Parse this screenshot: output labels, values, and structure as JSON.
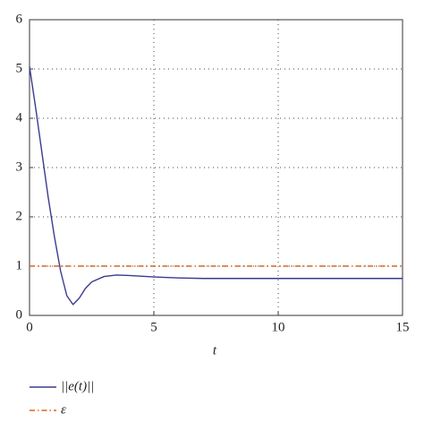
{
  "chart_data": {
    "type": "line",
    "x_label": "t",
    "xlim": [
      0,
      15
    ],
    "xticks": [
      0,
      5,
      10,
      15
    ],
    "ylim": [
      0,
      6
    ],
    "yticks": [
      0,
      1,
      2,
      3,
      4,
      5,
      6
    ],
    "grid": true,
    "series": [
      {
        "name": "||e(t)||",
        "color": "#3b3b8f",
        "style": "solid",
        "x": [
          0,
          0.25,
          0.5,
          0.75,
          1,
          1.25,
          1.5,
          1.75,
          2,
          2.25,
          2.5,
          3,
          3.5,
          4,
          5,
          6,
          7,
          8,
          10,
          12,
          15
        ],
        "values": [
          5.05,
          4.2,
          3.3,
          2.4,
          1.6,
          0.9,
          0.4,
          0.22,
          0.35,
          0.55,
          0.68,
          0.79,
          0.82,
          0.81,
          0.78,
          0.76,
          0.75,
          0.75,
          0.75,
          0.75,
          0.75
        ]
      },
      {
        "name": "ε",
        "color": "#d9661f",
        "style": "dashdot",
        "x": [
          0,
          15
        ],
        "values": [
          1,
          1
        ]
      }
    ]
  }
}
